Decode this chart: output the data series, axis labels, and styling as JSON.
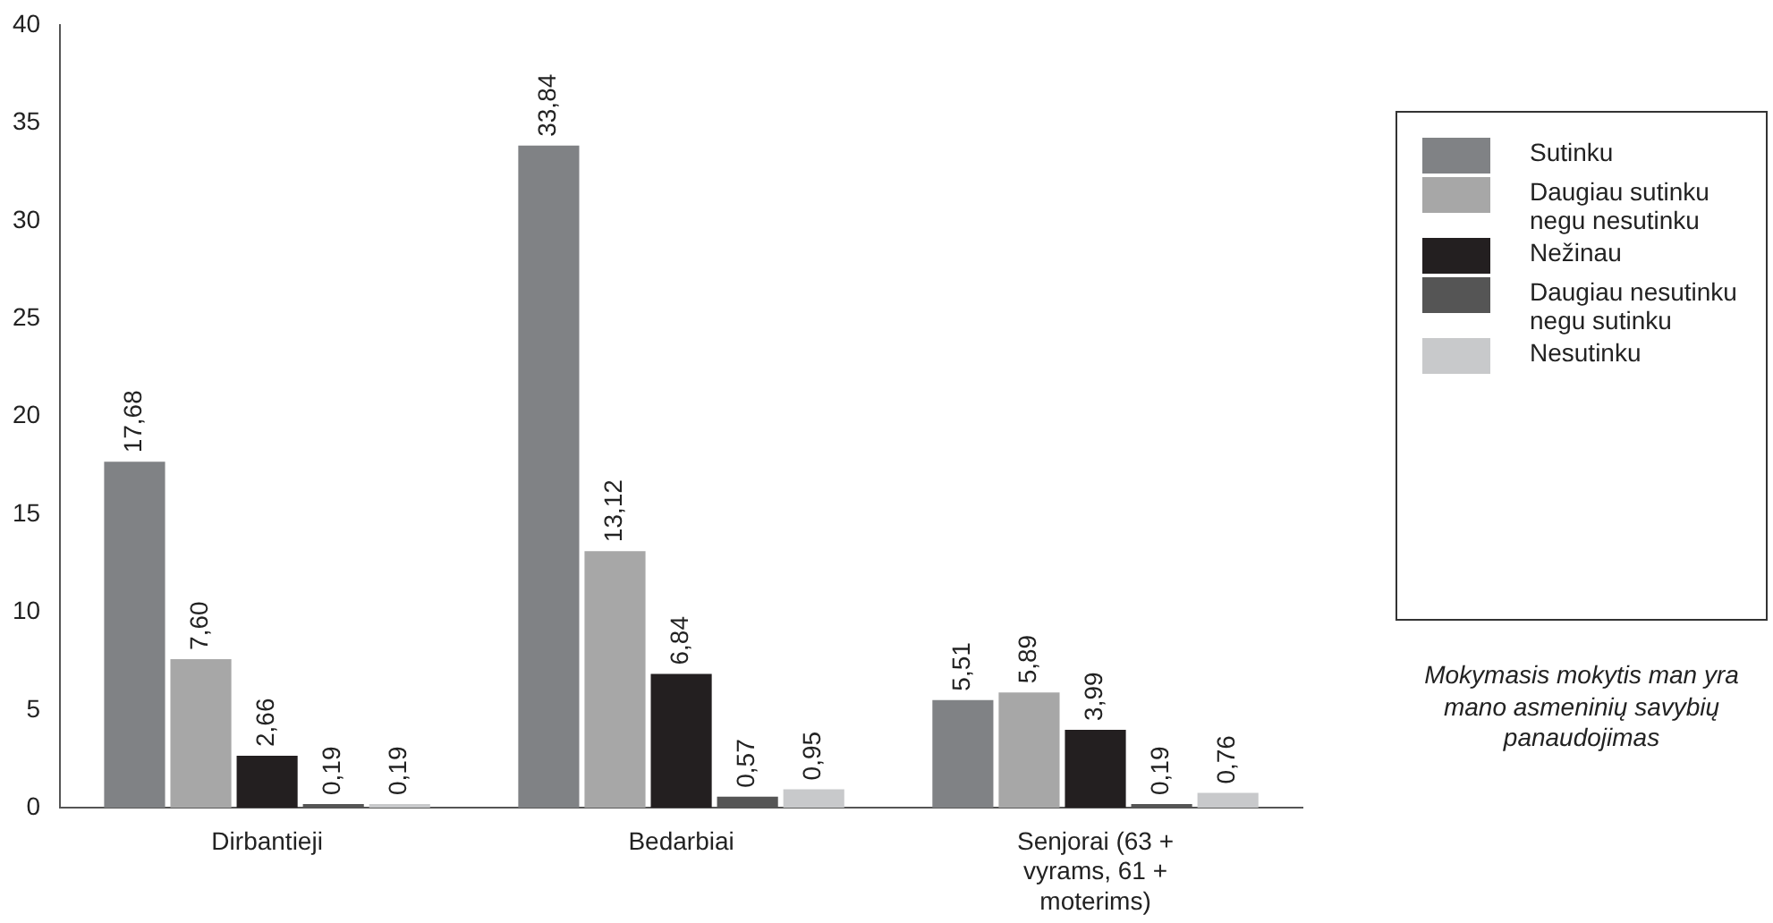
{
  "chart_data": {
    "type": "bar",
    "categories": [
      "Dirbantieji",
      "Bedarbiai",
      "Senjorai (63 + vyrams, 61 + moterims)"
    ],
    "series": [
      {
        "name": "Sutinku",
        "color": "#808285",
        "values": [
          17.68,
          33.84,
          5.51
        ],
        "value_labels": [
          "17,68",
          "33,84",
          "5,51"
        ]
      },
      {
        "name": "Daugiau sutinku negu nesutinku",
        "color": "#a7a7a7",
        "values": [
          7.6,
          13.12,
          5.89
        ],
        "value_labels": [
          "7,60",
          "13,12",
          "5,89"
        ]
      },
      {
        "name": "Nežinau",
        "color": "#231f20",
        "values": [
          2.66,
          6.84,
          3.99
        ],
        "value_labels": [
          "2,66",
          "6,84",
          "3,99"
        ]
      },
      {
        "name": "Daugiau nesutinku negu sutinku",
        "color": "#555555",
        "values": [
          0.19,
          0.57,
          0.19
        ],
        "value_labels": [
          "0,19",
          "0,57",
          "0,19"
        ]
      },
      {
        "name": "Nesutinku",
        "color": "#c8c9cb",
        "values": [
          0.19,
          0.95,
          0.76
        ],
        "value_labels": [
          "0,19",
          "0,95",
          "0,76"
        ]
      }
    ],
    "ylim": [
      0,
      40
    ],
    "yticks": [
      0,
      5,
      10,
      15,
      20,
      25,
      30,
      35,
      40
    ],
    "grid": false,
    "legend": "right",
    "annotations": [
      "Mokymasis mokytis man yra mano asmeninių savybių panaudojimas"
    ]
  }
}
